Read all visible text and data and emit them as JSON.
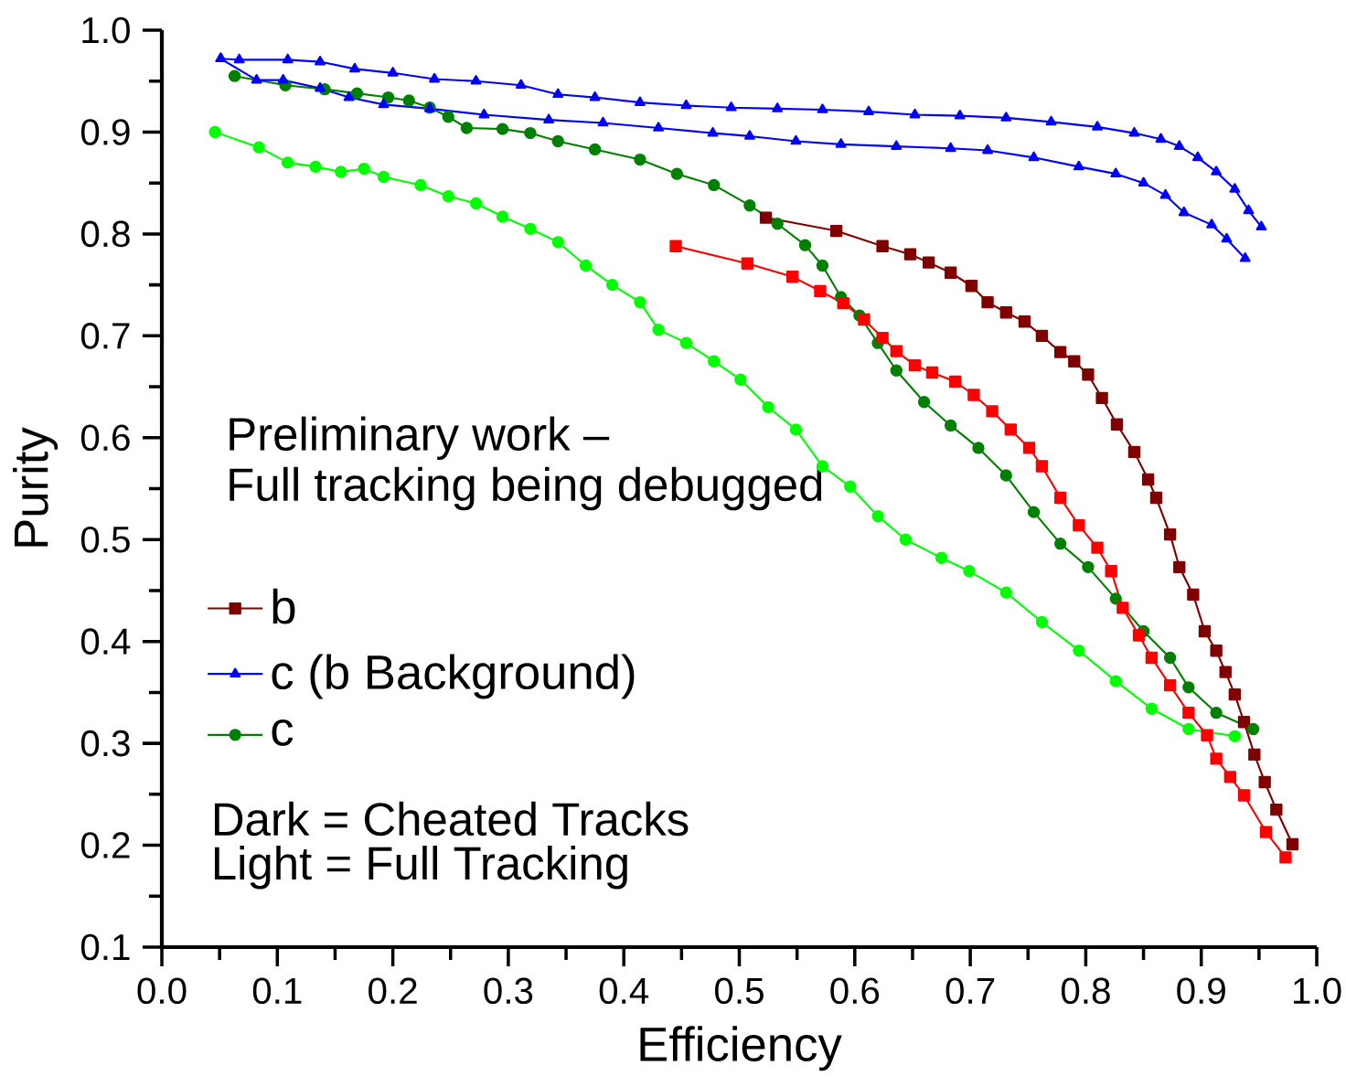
{
  "chart_data": {
    "type": "line",
    "xlabel": "Efficiency",
    "ylabel": "Purity",
    "xlim": [
      0,
      1
    ],
    "ylim": [
      0.1,
      1.0
    ],
    "xticks": [
      {
        "value": 0,
        "label": "0.0"
      },
      0.1,
      0.2,
      0.3,
      0.4,
      0.5,
      0.6,
      0.7,
      0.8,
      0.9,
      {
        "value": 1,
        "label": "1.0"
      }
    ],
    "yticks": [
      0.1,
      0.2,
      0.3,
      0.4,
      0.5,
      0.6,
      0.7,
      0.8,
      0.9,
      {
        "value": 1,
        "label": "1.0"
      }
    ],
    "legend": "bottom left",
    "annotations": [
      "Preliminary work –",
      "Full tracking being debugged",
      "Dark = Cheated Tracks",
      "Light = Full Tracking"
    ],
    "series": [
      {
        "name": "b",
        "color": "#800000",
        "marker": "square",
        "x": [
          0.523,
          0.584,
          0.624,
          0.648,
          0.664,
          0.683,
          0.701,
          0.715,
          0.731,
          0.747,
          0.762,
          0.778,
          0.79,
          0.802,
          0.814,
          0.827,
          0.842,
          0.854,
          0.861,
          0.873,
          0.881,
          0.893,
          0.903,
          0.913,
          0.921,
          0.929,
          0.937,
          0.946,
          0.955,
          0.965,
          0.979
        ],
        "values": [
          0.816,
          0.803,
          0.788,
          0.78,
          0.772,
          0.762,
          0.749,
          0.733,
          0.723,
          0.714,
          0.7,
          0.684,
          0.675,
          0.662,
          0.639,
          0.613,
          0.586,
          0.559,
          0.541,
          0.505,
          0.473,
          0.446,
          0.41,
          0.391,
          0.37,
          0.348,
          0.321,
          0.289,
          0.262,
          0.235,
          0.201
        ]
      },
      {
        "name": "c (b Background)",
        "color": "#0000ff",
        "marker": "triangle",
        "x": [
          0.051,
          0.067,
          0.109,
          0.137,
          0.167,
          0.2,
          0.236,
          0.272,
          0.311,
          0.343,
          0.375,
          0.414,
          0.454,
          0.493,
          0.533,
          0.572,
          0.612,
          0.652,
          0.691,
          0.731,
          0.77,
          0.81,
          0.842,
          0.865,
          0.881,
          0.897,
          0.913,
          0.929,
          0.941,
          0.952
        ],
        "values": [
          0.972,
          0.971,
          0.971,
          0.969,
          0.962,
          0.958,
          0.952,
          0.95,
          0.946,
          0.937,
          0.934,
          0.929,
          0.926,
          0.924,
          0.923,
          0.922,
          0.92,
          0.917,
          0.916,
          0.914,
          0.91,
          0.905,
          0.899,
          0.893,
          0.886,
          0.875,
          0.861,
          0.844,
          0.823,
          0.807
        ]
      },
      {
        "name": "c",
        "color": "#008000",
        "marker": "circle",
        "x": [
          0.063,
          0.107,
          0.141,
          0.169,
          0.196,
          0.214,
          0.232,
          0.248,
          0.264,
          0.295,
          0.319,
          0.343,
          0.375,
          0.414,
          0.446,
          0.478,
          0.509,
          0.533,
          0.557,
          0.572,
          0.588,
          0.604,
          0.62,
          0.636,
          0.66,
          0.683,
          0.707,
          0.731,
          0.755,
          0.778,
          0.802,
          0.826,
          0.85,
          0.873,
          0.889,
          0.913,
          0.945
        ],
        "values": [
          0.955,
          0.946,
          0.942,
          0.938,
          0.934,
          0.931,
          0.924,
          0.915,
          0.904,
          0.903,
          0.899,
          0.891,
          0.883,
          0.873,
          0.859,
          0.848,
          0.828,
          0.81,
          0.789,
          0.769,
          0.738,
          0.72,
          0.693,
          0.666,
          0.635,
          0.612,
          0.59,
          0.563,
          0.527,
          0.496,
          0.473,
          0.442,
          0.41,
          0.384,
          0.355,
          0.33,
          0.314
        ]
      },
      {
        "color": "#ff0000",
        "marker": "square",
        "x": [
          0.445,
          0.507,
          0.546,
          0.57,
          0.59,
          0.608,
          0.624,
          0.636,
          0.652,
          0.667,
          0.687,
          0.703,
          0.719,
          0.735,
          0.751,
          0.762,
          0.778,
          0.794,
          0.81,
          0.822,
          0.832,
          0.846,
          0.857,
          0.873,
          0.889,
          0.905,
          0.913,
          0.925,
          0.937,
          0.956,
          0.973
        ],
        "values": [
          0.788,
          0.771,
          0.758,
          0.744,
          0.732,
          0.716,
          0.698,
          0.685,
          0.671,
          0.664,
          0.655,
          0.642,
          0.626,
          0.608,
          0.59,
          0.572,
          0.541,
          0.514,
          0.492,
          0.469,
          0.433,
          0.406,
          0.384,
          0.357,
          0.33,
          0.308,
          0.285,
          0.267,
          0.249,
          0.213,
          0.188
        ]
      },
      {
        "color": "#0000ff",
        "marker": "triangle",
        "x": [
          0.051,
          0.082,
          0.105,
          0.137,
          0.162,
          0.192,
          0.232,
          0.279,
          0.335,
          0.382,
          0.43,
          0.477,
          0.509,
          0.549,
          0.588,
          0.636,
          0.683,
          0.715,
          0.755,
          0.794,
          0.826,
          0.85,
          0.869,
          0.885,
          0.909,
          0.922,
          0.938
        ],
        "values": [
          0.972,
          0.951,
          0.951,
          0.943,
          0.934,
          0.927,
          0.923,
          0.917,
          0.912,
          0.909,
          0.904,
          0.899,
          0.896,
          0.891,
          0.888,
          0.886,
          0.884,
          0.882,
          0.875,
          0.866,
          0.859,
          0.85,
          0.838,
          0.821,
          0.809,
          0.795,
          0.776
        ]
      },
      {
        "color": "#00ff00",
        "marker": "circle",
        "x": [
          0.046,
          0.084,
          0.109,
          0.133,
          0.155,
          0.175,
          0.192,
          0.224,
          0.248,
          0.272,
          0.295,
          0.319,
          0.343,
          0.367,
          0.39,
          0.414,
          0.43,
          0.454,
          0.478,
          0.501,
          0.525,
          0.549,
          0.572,
          0.596,
          0.62,
          0.644,
          0.675,
          0.699,
          0.731,
          0.762,
          0.794,
          0.826,
          0.857,
          0.889,
          0.929
        ],
        "values": [
          0.9,
          0.885,
          0.87,
          0.866,
          0.861,
          0.864,
          0.856,
          0.848,
          0.837,
          0.83,
          0.817,
          0.805,
          0.792,
          0.769,
          0.75,
          0.733,
          0.706,
          0.693,
          0.675,
          0.657,
          0.63,
          0.608,
          0.572,
          0.552,
          0.523,
          0.5,
          0.482,
          0.469,
          0.448,
          0.419,
          0.391,
          0.361,
          0.334,
          0.314,
          0.307
        ]
      }
    ]
  }
}
